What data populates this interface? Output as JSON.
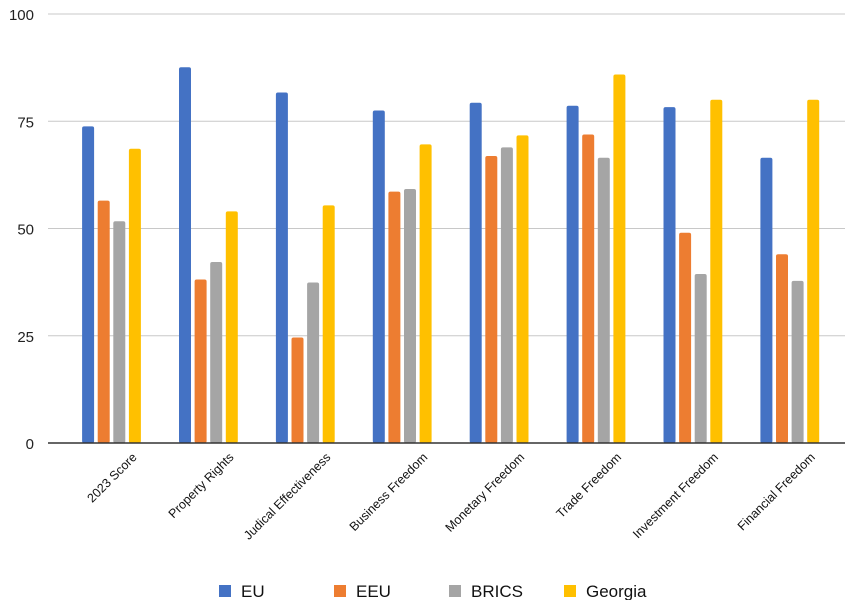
{
  "chart_data": {
    "type": "bar",
    "title": "",
    "xlabel": "",
    "ylabel": "",
    "ylim": [
      0,
      100
    ],
    "yticks": [
      0,
      25,
      50,
      75,
      100
    ],
    "grid": true,
    "legend_position": "bottom",
    "categories": [
      "2023 Score",
      "Property Rights",
      "Judical Effectiveness",
      "Business Freedom",
      "Monetary Freedom",
      "Trade Freedom",
      "Investment Freedom",
      "Financial Freedom"
    ],
    "series": [
      {
        "name": "EU",
        "color": "#4472C4",
        "values": [
          73.8,
          87.6,
          81.7,
          77.5,
          79.3,
          78.6,
          78.3,
          66.5
        ]
      },
      {
        "name": "EEU",
        "color": "#ED7D31",
        "values": [
          56.5,
          38.1,
          24.6,
          58.6,
          66.9,
          71.9,
          49.0,
          44.0
        ]
      },
      {
        "name": "BRICS",
        "color": "#A5A5A5",
        "values": [
          51.7,
          42.2,
          37.4,
          59.2,
          68.9,
          66.5,
          39.4,
          37.8
        ]
      },
      {
        "name": "Georgia",
        "color": "#FFC000",
        "values": [
          68.6,
          54.0,
          55.4,
          69.6,
          71.7,
          85.9,
          80.0,
          80.0
        ]
      }
    ]
  }
}
